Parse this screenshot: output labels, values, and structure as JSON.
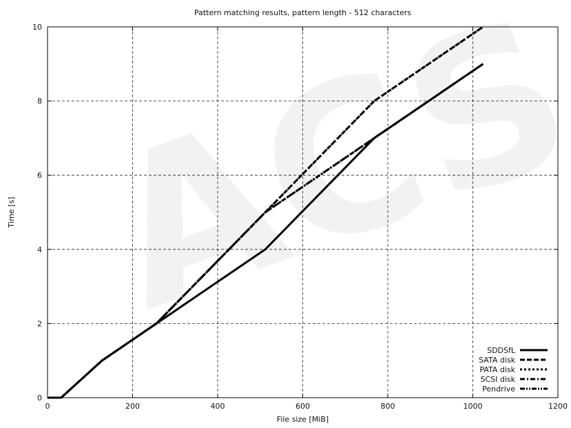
{
  "chart_data": {
    "type": "line",
    "title": "Pattern matching results, pattern length - 512 characters",
    "xlabel": "File size [MiB]",
    "ylabel": "Time [s]",
    "xlim": [
      0,
      1200
    ],
    "ylim": [
      0,
      10
    ],
    "xticks": [
      0,
      200,
      400,
      600,
      800,
      1000,
      1200
    ],
    "yticks": [
      0,
      2,
      4,
      6,
      8,
      10
    ],
    "grid": true,
    "legend_position": "bottom-right",
    "watermark": "ACS",
    "series": [
      {
        "name": "SDDSfL",
        "dash": "solid",
        "x": [
          0,
          32,
          128,
          256,
          512,
          768,
          1024
        ],
        "y": [
          0,
          0,
          1,
          2,
          4,
          7,
          9
        ]
      },
      {
        "name": "SATA disk",
        "dash": "dashed",
        "x": [
          0,
          32,
          128,
          256,
          512,
          768,
          1024
        ],
        "y": [
          0,
          0,
          1,
          2,
          5,
          8,
          10
        ]
      },
      {
        "name": "PATA disk",
        "dash": "dotted",
        "x": [
          0,
          32,
          128,
          256,
          512,
          768,
          1024
        ],
        "y": [
          0,
          0,
          1,
          2,
          5,
          8,
          10
        ]
      },
      {
        "name": "SCSI disk",
        "dash": "dashdot",
        "x": [
          0,
          32,
          128,
          256,
          512,
          768,
          1024
        ],
        "y": [
          0,
          0,
          1,
          2,
          5,
          7,
          9
        ]
      },
      {
        "name": "Pendrive",
        "dash": "dashdotdot",
        "x": [
          0,
          32,
          128,
          256,
          512,
          768,
          1024
        ],
        "y": [
          0,
          0,
          1,
          2,
          5,
          7,
          9
        ]
      }
    ]
  }
}
